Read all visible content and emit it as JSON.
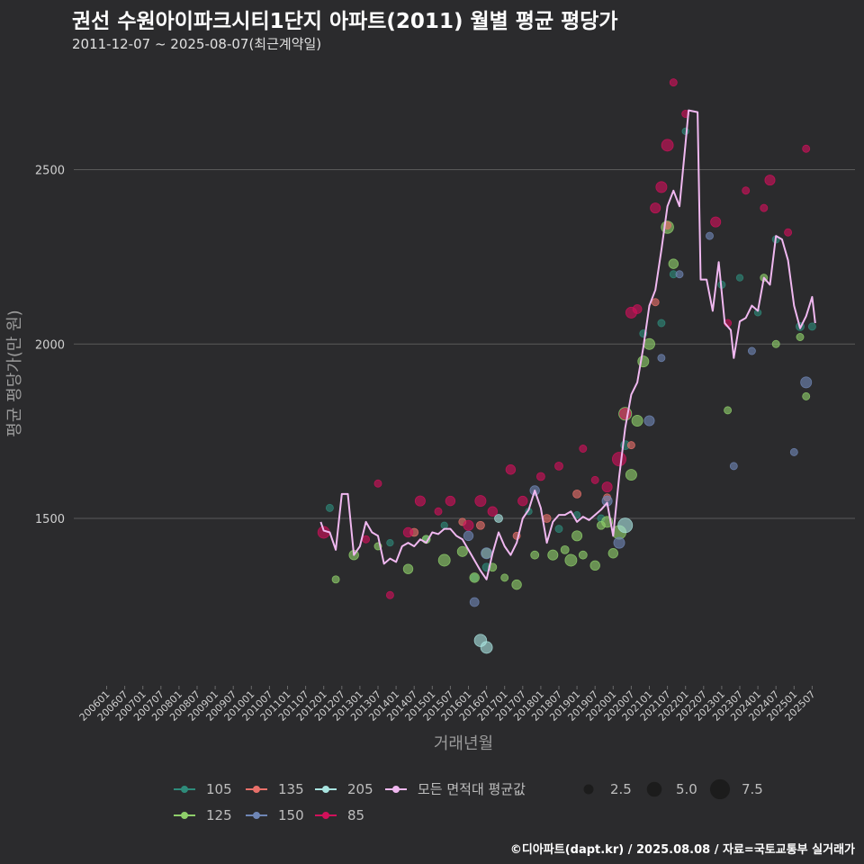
{
  "header": {
    "title": "권선 수원아이파크시티1단지 아파트(2011) 월별 평균 평당가",
    "subtitle": "2011-12-07 ~ 2025-08-07(최근계약일)"
  },
  "credit": "©디아파트(dapt.kr) / 2025.08.08 / 자료=국토교통부 실거래가",
  "colors": {
    "background": "#2b2b2d",
    "grid": "#5a5a5a",
    "s105": "#2e8b7a",
    "s125": "#8fcf6a",
    "s135": "#e8706a",
    "s150": "#6f86b5",
    "s205": "#a9e4e0",
    "s85": "#d0105a",
    "avg": "#f0b8f0"
  },
  "chart_data": {
    "type": "scatter",
    "xlabel": "거래년월",
    "ylabel": "평균 평당가(만 원)",
    "y_ticks": [
      1500,
      2000,
      2500
    ],
    "ylim": [
      1020,
      2780
    ],
    "x_ticks": [
      "200601",
      "200607",
      "200701",
      "200707",
      "200801",
      "200807",
      "200901",
      "200907",
      "201001",
      "201007",
      "201101",
      "201107",
      "201201",
      "201207",
      "201301",
      "201307",
      "201401",
      "201407",
      "201501",
      "201507",
      "201601",
      "201607",
      "201701",
      "201707",
      "201801",
      "201807",
      "201901",
      "201907",
      "202001",
      "202007",
      "202101",
      "202107",
      "202201",
      "202207",
      "202301",
      "202307",
      "202401",
      "202407",
      "202501",
      "202507"
    ],
    "grid": true,
    "legend_placement": "bottom",
    "legend": {
      "series": [
        {
          "key": "s105",
          "label": "105"
        },
        {
          "key": "s135",
          "label": "135"
        },
        {
          "key": "s205",
          "label": "205"
        },
        {
          "key": "avg",
          "label": "모든 면적대 평균값"
        },
        {
          "key": "s125",
          "label": "125"
        },
        {
          "key": "s150",
          "label": "150"
        },
        {
          "key": "s85",
          "label": "85"
        }
      ],
      "sizes": [
        {
          "label": "2.5",
          "value": 2.5
        },
        {
          "label": "5.0",
          "value": 5.0
        },
        {
          "label": "7.5",
          "value": 7.5
        }
      ]
    },
    "average_line": {
      "name": "모든 면적대 평균값",
      "points": [
        [
          "2011-12",
          1490
        ],
        [
          "2012-01",
          1465
        ],
        [
          "2012-03",
          1460
        ],
        [
          "2012-05",
          1410
        ],
        [
          "2012-07",
          1570
        ],
        [
          "2012-09",
          1570
        ],
        [
          "2012-11",
          1395
        ],
        [
          "2013-01",
          1420
        ],
        [
          "2013-03",
          1490
        ],
        [
          "2013-05",
          1460
        ],
        [
          "2013-07",
          1450
        ],
        [
          "2013-09",
          1370
        ],
        [
          "2013-11",
          1385
        ],
        [
          "2014-01",
          1375
        ],
        [
          "2014-03",
          1420
        ],
        [
          "2014-05",
          1430
        ],
        [
          "2014-07",
          1420
        ],
        [
          "2014-09",
          1440
        ],
        [
          "2014-11",
          1430
        ],
        [
          "2015-01",
          1460
        ],
        [
          "2015-03",
          1455
        ],
        [
          "2015-05",
          1470
        ],
        [
          "2015-07",
          1470
        ],
        [
          "2015-09",
          1450
        ],
        [
          "2015-11",
          1440
        ],
        [
          "2016-01",
          1410
        ],
        [
          "2016-03",
          1380
        ],
        [
          "2016-05",
          1350
        ],
        [
          "2016-07",
          1325
        ],
        [
          "2016-09",
          1400
        ],
        [
          "2016-11",
          1460
        ],
        [
          "2017-01",
          1420
        ],
        [
          "2017-03",
          1395
        ],
        [
          "2017-05",
          1430
        ],
        [
          "2017-07",
          1500
        ],
        [
          "2017-09",
          1525
        ],
        [
          "2017-11",
          1580
        ],
        [
          "2018-01",
          1530
        ],
        [
          "2018-03",
          1430
        ],
        [
          "2018-05",
          1490
        ],
        [
          "2018-07",
          1510
        ],
        [
          "2018-09",
          1510
        ],
        [
          "2018-11",
          1520
        ],
        [
          "2019-01",
          1490
        ],
        [
          "2019-03",
          1505
        ],
        [
          "2019-05",
          1495
        ],
        [
          "2019-07",
          1510
        ],
        [
          "2019-09",
          1525
        ],
        [
          "2019-11",
          1545
        ],
        [
          "2020-01",
          1450
        ],
        [
          "2020-03",
          1620
        ],
        [
          "2020-05",
          1760
        ],
        [
          "2020-07",
          1855
        ],
        [
          "2020-09",
          1890
        ],
        [
          "2020-11",
          1990
        ],
        [
          "2021-01",
          2110
        ],
        [
          "2021-03",
          2155
        ],
        [
          "2021-05",
          2270
        ],
        [
          "2021-07",
          2395
        ],
        [
          "2021-09",
          2440
        ],
        [
          "2021-11",
          2395
        ],
        [
          "2022-01",
          2575
        ],
        [
          "2022-02",
          2670
        ],
        [
          "2022-05",
          2665
        ],
        [
          "2022-06",
          2185
        ],
        [
          "2022-08",
          2185
        ],
        [
          "2022-10",
          2095
        ],
        [
          "2022-12",
          2235
        ],
        [
          "2023-02",
          2060
        ],
        [
          "2023-04",
          2040
        ],
        [
          "2023-05",
          1960
        ],
        [
          "2023-07",
          2065
        ],
        [
          "2023-09",
          2075
        ],
        [
          "2023-11",
          2110
        ],
        [
          "2024-01",
          2095
        ],
        [
          "2024-03",
          2190
        ],
        [
          "2024-05",
          2170
        ],
        [
          "2024-07",
          2310
        ],
        [
          "2024-09",
          2300
        ],
        [
          "2024-11",
          2240
        ],
        [
          "2025-01",
          2110
        ],
        [
          "2025-03",
          2045
        ],
        [
          "2025-05",
          2080
        ],
        [
          "2025-07",
          2135
        ],
        [
          "2025-08",
          2060
        ]
      ]
    },
    "series": [
      {
        "key": "s105",
        "label": "105",
        "points": [
          [
            "2012-03",
            1530,
            1.2
          ],
          [
            "2013-11",
            1430,
            1.0
          ],
          [
            "2014-11",
            1440,
            1.2
          ],
          [
            "2015-05",
            1480,
            1.0
          ],
          [
            "2016-03",
            1330,
            1.2
          ],
          [
            "2016-07",
            1360,
            1.5
          ],
          [
            "2017-09",
            1520,
            1.0
          ],
          [
            "2018-07",
            1470,
            1.2
          ],
          [
            "2019-01",
            1510,
            1.0
          ],
          [
            "2019-09",
            1500,
            1.2
          ],
          [
            "2020-05",
            1710,
            1.8
          ],
          [
            "2020-11",
            2030,
            1.2
          ],
          [
            "2021-05",
            2060,
            1.2
          ],
          [
            "2021-09",
            2200,
            1.2
          ],
          [
            "2022-01",
            2610,
            1.0
          ],
          [
            "2023-01",
            2170,
            1.2
          ],
          [
            "2023-07",
            2190,
            1.0
          ],
          [
            "2024-01",
            2090,
            1.0
          ],
          [
            "2024-07",
            2300,
            1.2
          ],
          [
            "2025-03",
            2050,
            1.5
          ],
          [
            "2025-07",
            2050,
            1.2
          ]
        ]
      },
      {
        "key": "s125",
        "label": "125",
        "points": [
          [
            "2012-05",
            1325,
            1.2
          ],
          [
            "2012-11",
            1395,
            2.0
          ],
          [
            "2013-07",
            1420,
            1.2
          ],
          [
            "2014-05",
            1355,
            2.0
          ],
          [
            "2014-11",
            1440,
            1.5
          ],
          [
            "2015-05",
            1380,
            2.8
          ],
          [
            "2015-11",
            1405,
            2.2
          ],
          [
            "2016-03",
            1330,
            2.0
          ],
          [
            "2016-07",
            1400,
            2.2
          ],
          [
            "2016-09",
            1360,
            1.5
          ],
          [
            "2017-01",
            1330,
            1.2
          ],
          [
            "2017-05",
            1310,
            2.0
          ],
          [
            "2017-11",
            1395,
            1.5
          ],
          [
            "2018-05",
            1395,
            2.2
          ],
          [
            "2018-09",
            1410,
            1.5
          ],
          [
            "2018-11",
            1380,
            2.8
          ],
          [
            "2019-01",
            1450,
            2.2
          ],
          [
            "2019-03",
            1395,
            1.5
          ],
          [
            "2019-07",
            1365,
            2.0
          ],
          [
            "2019-09",
            1480,
            1.5
          ],
          [
            "2019-11",
            1490,
            2.5
          ],
          [
            "2020-01",
            1400,
            2.0
          ],
          [
            "2020-03",
            1460,
            3.5
          ],
          [
            "2020-05",
            1800,
            3.2
          ],
          [
            "2020-07",
            1625,
            2.5
          ],
          [
            "2020-09",
            1780,
            2.5
          ],
          [
            "2020-11",
            1950,
            2.5
          ],
          [
            "2021-01",
            2000,
            2.5
          ],
          [
            "2021-07",
            2335,
            3.0
          ],
          [
            "2021-09",
            2230,
            2.0
          ],
          [
            "2023-03",
            1810,
            1.2
          ],
          [
            "2024-03",
            2190,
            1.2
          ],
          [
            "2024-07",
            2000,
            1.2
          ],
          [
            "2025-03",
            2020,
            1.2
          ],
          [
            "2025-05",
            1850,
            1.2
          ]
        ]
      },
      {
        "key": "s135",
        "label": "135",
        "points": [
          [
            "2014-07",
            1460,
            1.5
          ],
          [
            "2015-11",
            1490,
            1.2
          ],
          [
            "2016-05",
            1480,
            1.5
          ],
          [
            "2017-05",
            1450,
            1.2
          ],
          [
            "2018-03",
            1500,
            1.5
          ],
          [
            "2019-01",
            1570,
            1.5
          ],
          [
            "2019-11",
            1560,
            1.2
          ],
          [
            "2020-07",
            1710,
            1.2
          ],
          [
            "2021-03",
            2120,
            1.2
          ],
          [
            "2021-07",
            2340,
            1.2
          ]
        ]
      },
      {
        "key": "s150",
        "label": "150",
        "points": [
          [
            "2016-01",
            1450,
            2.0
          ],
          [
            "2016-03",
            1260,
            1.8
          ],
          [
            "2016-07",
            1400,
            2.5
          ],
          [
            "2017-11",
            1580,
            2.0
          ],
          [
            "2019-11",
            1550,
            2.2
          ],
          [
            "2020-03",
            1430,
            2.5
          ],
          [
            "2021-01",
            1780,
            2.2
          ],
          [
            "2021-05",
            1960,
            1.2
          ],
          [
            "2021-11",
            2200,
            1.2
          ],
          [
            "2022-09",
            2310,
            1.2
          ],
          [
            "2023-05",
            1650,
            1.2
          ],
          [
            "2023-11",
            1980,
            1.2
          ],
          [
            "2025-01",
            1690,
            1.2
          ],
          [
            "2025-05",
            1890,
            2.5
          ]
        ]
      },
      {
        "key": "s205",
        "label": "205",
        "points": [
          [
            "2016-05",
            1150,
            3.0
          ],
          [
            "2016-07",
            1130,
            2.8
          ],
          [
            "2016-11",
            1500,
            1.5
          ],
          [
            "2020-05",
            1480,
            3.8
          ]
        ]
      },
      {
        "key": "s85",
        "label": "85",
        "points": [
          [
            "2012-01",
            1460,
            2.8
          ],
          [
            "2013-03",
            1440,
            1.2
          ],
          [
            "2013-07",
            1600,
            1.2
          ],
          [
            "2013-11",
            1280,
            1.2
          ],
          [
            "2014-05",
            1460,
            2.0
          ],
          [
            "2014-09",
            1550,
            2.2
          ],
          [
            "2015-03",
            1520,
            1.2
          ],
          [
            "2015-07",
            1550,
            2.0
          ],
          [
            "2016-01",
            1480,
            2.2
          ],
          [
            "2016-05",
            1550,
            2.5
          ],
          [
            "2016-09",
            1520,
            2.0
          ],
          [
            "2017-03",
            1640,
            2.0
          ],
          [
            "2017-07",
            1550,
            2.0
          ],
          [
            "2018-01",
            1620,
            1.5
          ],
          [
            "2018-07",
            1650,
            1.5
          ],
          [
            "2019-03",
            1700,
            1.2
          ],
          [
            "2019-07",
            1610,
            1.2
          ],
          [
            "2019-11",
            1590,
            2.2
          ],
          [
            "2020-03",
            1670,
            3.5
          ],
          [
            "2020-05",
            1800,
            2.5
          ],
          [
            "2020-07",
            2090,
            2.5
          ],
          [
            "2020-09",
            2100,
            1.8
          ],
          [
            "2021-03",
            2390,
            2.2
          ],
          [
            "2021-05",
            2450,
            2.5
          ],
          [
            "2021-07",
            2570,
            2.8
          ],
          [
            "2021-09",
            2750,
            1.2
          ],
          [
            "2022-01",
            2660,
            1.2
          ],
          [
            "2022-11",
            2350,
            2.2
          ],
          [
            "2023-03",
            2060,
            1.2
          ],
          [
            "2023-09",
            2440,
            1.2
          ],
          [
            "2024-03",
            2390,
            1.2
          ],
          [
            "2024-05",
            2470,
            2.2
          ],
          [
            "2024-11",
            2320,
            1.2
          ],
          [
            "2025-05",
            2560,
            1.2
          ]
        ]
      }
    ]
  }
}
